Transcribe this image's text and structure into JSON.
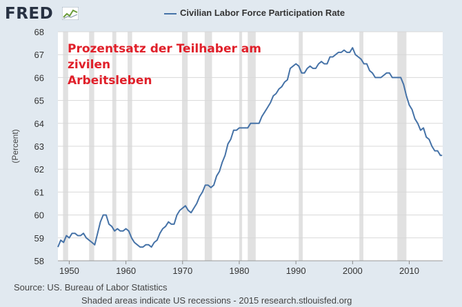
{
  "header": {
    "logo": "FRED",
    "legend_label": "Civilian Labor Force Participation Rate"
  },
  "annotation": {
    "line1": "Prozentsatz der Teilhaber am zivilen",
    "line2": "Arbeitsleben"
  },
  "footer": {
    "source": "Source: US. Bureau of Labor Statistics",
    "note": "Shaded areas indicate US recessions - 2015 research.stlouisfed.org"
  },
  "colors": {
    "series": "#4572a7",
    "recession": "#e1e1e1",
    "plot_bg": "#ffffff",
    "page_bg": "#e1e9f0",
    "annotation": "#e0202a"
  },
  "chart_data": {
    "type": "line",
    "title": "Civilian Labor Force Participation Rate",
    "ylabel": "(Percent)",
    "xlim": [
      1948,
      2015.9
    ],
    "ylim": [
      58,
      68
    ],
    "xticks": [
      "1950",
      "1960",
      "1970",
      "1980",
      "1990",
      "2000",
      "2010"
    ],
    "yticks": [
      "58",
      "59",
      "60",
      "61",
      "62",
      "63",
      "64",
      "65",
      "66",
      "67",
      "68"
    ],
    "grid": true,
    "legend": "top",
    "recessions": [
      [
        1948.9,
        1949.8
      ],
      [
        1953.5,
        1954.4
      ],
      [
        1957.6,
        1958.3
      ],
      [
        1960.3,
        1961.1
      ],
      [
        1969.9,
        1970.9
      ],
      [
        1973.9,
        1975.2
      ],
      [
        1980.0,
        1980.5
      ],
      [
        1981.5,
        1982.9
      ],
      [
        1990.5,
        1991.2
      ],
      [
        2001.2,
        2001.9
      ],
      [
        2007.9,
        2009.5
      ]
    ],
    "series": [
      {
        "name": "Civilian Labor Force Participation Rate",
        "x": [
          1948.0,
          1948.5,
          1949.0,
          1949.5,
          1950.0,
          1950.5,
          1951.0,
          1951.5,
          1952.0,
          1952.5,
          1953.0,
          1953.5,
          1954.0,
          1954.5,
          1955.0,
          1955.5,
          1956.0,
          1956.5,
          1957.0,
          1957.5,
          1958.0,
          1958.5,
          1959.0,
          1959.5,
          1960.0,
          1960.5,
          1961.0,
          1961.5,
          1962.0,
          1962.5,
          1963.0,
          1963.5,
          1964.0,
          1964.5,
          1965.0,
          1965.5,
          1966.0,
          1966.5,
          1967.0,
          1967.5,
          1968.0,
          1968.5,
          1969.0,
          1969.5,
          1970.0,
          1970.5,
          1971.0,
          1971.5,
          1972.0,
          1972.5,
          1973.0,
          1973.5,
          1974.0,
          1974.5,
          1975.0,
          1975.5,
          1976.0,
          1976.5,
          1977.0,
          1977.5,
          1978.0,
          1978.5,
          1979.0,
          1979.5,
          1980.0,
          1980.5,
          1981.0,
          1981.5,
          1982.0,
          1982.5,
          1983.0,
          1983.5,
          1984.0,
          1984.5,
          1985.0,
          1985.5,
          1986.0,
          1986.5,
          1987.0,
          1987.5,
          1988.0,
          1988.5,
          1989.0,
          1989.5,
          1990.0,
          1990.5,
          1991.0,
          1991.5,
          1992.0,
          1992.5,
          1993.0,
          1993.5,
          1994.0,
          1994.5,
          1995.0,
          1995.5,
          1996.0,
          1996.5,
          1997.0,
          1997.5,
          1998.0,
          1998.5,
          1999.0,
          1999.5,
          2000.0,
          2000.5,
          2001.0,
          2001.5,
          2002.0,
          2002.5,
          2003.0,
          2003.5,
          2004.0,
          2004.5,
          2005.0,
          2005.5,
          2006.0,
          2006.5,
          2007.0,
          2007.5,
          2008.0,
          2008.5,
          2009.0,
          2009.5,
          2010.0,
          2010.5,
          2011.0,
          2011.5,
          2012.0,
          2012.5,
          2013.0,
          2013.5,
          2014.0,
          2014.5,
          2015.0,
          2015.5,
          2015.8
        ],
        "values": [
          58.6,
          58.9,
          58.8,
          59.1,
          59.0,
          59.2,
          59.2,
          59.1,
          59.1,
          59.2,
          59.0,
          58.9,
          58.8,
          58.7,
          59.2,
          59.7,
          60.0,
          60.0,
          59.6,
          59.5,
          59.3,
          59.4,
          59.3,
          59.3,
          59.4,
          59.3,
          59.0,
          58.8,
          58.7,
          58.6,
          58.6,
          58.7,
          58.7,
          58.6,
          58.8,
          58.9,
          59.2,
          59.4,
          59.5,
          59.7,
          59.6,
          59.6,
          60.0,
          60.2,
          60.3,
          60.4,
          60.2,
          60.1,
          60.3,
          60.5,
          60.8,
          61.0,
          61.3,
          61.3,
          61.2,
          61.3,
          61.7,
          61.9,
          62.3,
          62.6,
          63.1,
          63.3,
          63.7,
          63.7,
          63.8,
          63.8,
          63.8,
          63.8,
          64.0,
          64.0,
          64.0,
          64.0,
          64.3,
          64.5,
          64.7,
          64.9,
          65.2,
          65.3,
          65.5,
          65.6,
          65.8,
          65.9,
          66.4,
          66.5,
          66.6,
          66.5,
          66.2,
          66.2,
          66.4,
          66.5,
          66.4,
          66.4,
          66.6,
          66.7,
          66.6,
          66.6,
          66.9,
          66.9,
          67.0,
          67.1,
          67.1,
          67.2,
          67.1,
          67.1,
          67.3,
          67.0,
          66.9,
          66.8,
          66.6,
          66.6,
          66.3,
          66.2,
          66.0,
          66.0,
          66.0,
          66.1,
          66.2,
          66.2,
          66.0,
          66.0,
          66.0,
          66.0,
          65.7,
          65.2,
          64.8,
          64.6,
          64.2,
          64.0,
          63.7,
          63.8,
          63.4,
          63.3,
          63.0,
          62.8,
          62.8,
          62.6,
          62.6
        ]
      }
    ]
  }
}
